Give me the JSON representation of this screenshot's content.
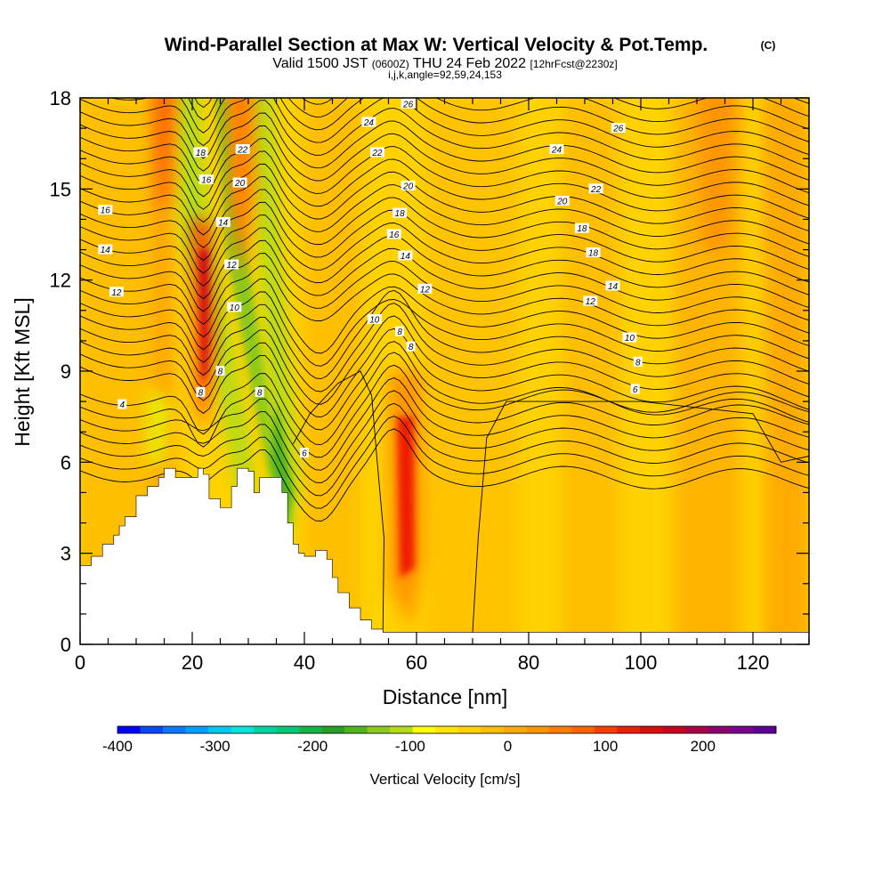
{
  "header": {
    "title": "Wind-Parallel Section at Max W: Vertical Velocity & Pot.Temp.",
    "copyright": "(C)",
    "valid_prefix": "Valid 1500 JST",
    "utc": "(0600Z)",
    "valid_date": "THU 24 Feb 2022",
    "forecast": "[12hrFcst@2230z]",
    "params": "i,j,k,angle=92,59,24,153"
  },
  "chart_data": {
    "type": "heatmap",
    "xlabel": "Distance [nm]",
    "ylabel": "Height [Kft MSL]",
    "xlim": [
      0,
      130
    ],
    "ylim": [
      0,
      18
    ],
    "xticks": [
      0,
      20,
      40,
      60,
      80,
      100,
      120
    ],
    "xtick_labels": [
      "0",
      "20",
      "40",
      "60",
      "80",
      "100",
      "120"
    ],
    "yticks": [
      0,
      3,
      6,
      9,
      12,
      15,
      18
    ],
    "ytick_labels": [
      "0",
      "3",
      "6",
      "9",
      "12",
      "15",
      "18"
    ],
    "colorbar": {
      "label": "Vertical Velocity [cm/s]",
      "min": -400,
      "max": 275,
      "step": 25,
      "ticks": [
        -400,
        -300,
        -200,
        -100,
        0,
        100,
        200
      ],
      "tick_labels": [
        "-400",
        "-300",
        "-200",
        "-100",
        "0",
        "100",
        "200"
      ],
      "colors": [
        "#0000ff",
        "#0a46fa",
        "#0a78fa",
        "#00a0ff",
        "#00c8f0",
        "#00e6dc",
        "#00d2a0",
        "#00c878",
        "#14b446",
        "#28a028",
        "#50b41e",
        "#8cc81e",
        "#b4dc14",
        "#ffff00",
        "#ffe600",
        "#ffd200",
        "#ffbe00",
        "#ffaa00",
        "#ff9600",
        "#ff7d00",
        "#ff6400",
        "#ff3c00",
        "#f01e00",
        "#dc0a0a",
        "#c8001e",
        "#aa0046",
        "#8c006e",
        "#78008c",
        "#5a0096"
      ]
    },
    "terrain_profile": [
      [
        0,
        2.6
      ],
      [
        2,
        2.9
      ],
      [
        4,
        3.3
      ],
      [
        6,
        3.6
      ],
      [
        7,
        3.9
      ],
      [
        8,
        4.2
      ],
      [
        10,
        4.9
      ],
      [
        12,
        5.2
      ],
      [
        14,
        5.5
      ],
      [
        15,
        5.8
      ],
      [
        17,
        5.5
      ],
      [
        19,
        5.5
      ],
      [
        21,
        5.8
      ],
      [
        22,
        5.6
      ],
      [
        23,
        4.8
      ],
      [
        25,
        4.5
      ],
      [
        27,
        5.2
      ],
      [
        28,
        5.8
      ],
      [
        30,
        5.7
      ],
      [
        31,
        5.0
      ],
      [
        32,
        5.5
      ],
      [
        34,
        5.5
      ],
      [
        36,
        5.0
      ],
      [
        37,
        4.0
      ],
      [
        38,
        3.3
      ],
      [
        39,
        3.0
      ],
      [
        40,
        2.9
      ],
      [
        42,
        3.1
      ],
      [
        44,
        2.8
      ],
      [
        45,
        2.2
      ],
      [
        46,
        1.7
      ],
      [
        48,
        1.2
      ],
      [
        50,
        0.8
      ],
      [
        52,
        0.5
      ],
      [
        54,
        0.4
      ],
      [
        130,
        0.4
      ]
    ],
    "updrafts": [
      {
        "x": 58,
        "y": 5,
        "w_cm_s": 150
      },
      {
        "x": 22,
        "y": 11,
        "w_cm_s": 200
      },
      {
        "x": 28,
        "y": 17,
        "w_cm_s": 150
      },
      {
        "x": 15,
        "y": 18,
        "w_cm_s": 150
      },
      {
        "x": 113,
        "y": 16,
        "w_cm_s": 75
      }
    ],
    "downdrafts": [
      {
        "x": 20,
        "y": 13,
        "w_cm_s": -150
      },
      {
        "x": 33,
        "y": 7,
        "w_cm_s": -150
      },
      {
        "x": 36,
        "y": 4,
        "w_cm_s": -175
      },
      {
        "x": 25,
        "y": 16,
        "w_cm_s": -125
      }
    ],
    "theta_contours": {
      "levels_labeled": [
        "4",
        "6",
        "8",
        "10",
        "12",
        "14",
        "16",
        "18",
        "20",
        "22",
        "24",
        "26"
      ],
      "labels": [
        {
          "text": "4",
          "x": 7.5,
          "y": 7.9
        },
        {
          "text": "12",
          "x": 6.5,
          "y": 11.6
        },
        {
          "text": "14",
          "x": 4.5,
          "y": 13.0
        },
        {
          "text": "16",
          "x": 4.5,
          "y": 14.3
        },
        {
          "text": "18",
          "x": 21.5,
          "y": 16.2
        },
        {
          "text": "16",
          "x": 22.5,
          "y": 15.3
        },
        {
          "text": "14",
          "x": 25.5,
          "y": 13.9
        },
        {
          "text": "12",
          "x": 27.0,
          "y": 12.5
        },
        {
          "text": "10",
          "x": 27.5,
          "y": 11.1
        },
        {
          "text": "8",
          "x": 25.0,
          "y": 9.0
        },
        {
          "text": "8",
          "x": 21.5,
          "y": 8.3
        },
        {
          "text": "8",
          "x": 32.0,
          "y": 8.3
        },
        {
          "text": "22",
          "x": 29.0,
          "y": 16.3
        },
        {
          "text": "20",
          "x": 28.5,
          "y": 15.2
        },
        {
          "text": "6",
          "x": 40.0,
          "y": 6.3
        },
        {
          "text": "10",
          "x": 52.5,
          "y": 10.7
        },
        {
          "text": "8",
          "x": 57.0,
          "y": 10.3
        },
        {
          "text": "8",
          "x": 59.0,
          "y": 9.8
        },
        {
          "text": "12",
          "x": 61.5,
          "y": 11.7
        },
        {
          "text": "14",
          "x": 58.0,
          "y": 12.8
        },
        {
          "text": "16",
          "x": 56.0,
          "y": 13.5
        },
        {
          "text": "18",
          "x": 57.0,
          "y": 14.2
        },
        {
          "text": "20",
          "x": 58.5,
          "y": 15.1
        },
        {
          "text": "22",
          "x": 53.0,
          "y": 16.2
        },
        {
          "text": "24",
          "x": 51.5,
          "y": 17.2
        },
        {
          "text": "26",
          "x": 58.5,
          "y": 17.8
        },
        {
          "text": "26",
          "x": 96.0,
          "y": 17.0
        },
        {
          "text": "24",
          "x": 85.0,
          "y": 16.3
        },
        {
          "text": "22",
          "x": 92.0,
          "y": 15.0
        },
        {
          "text": "20",
          "x": 86.0,
          "y": 14.6
        },
        {
          "text": "18",
          "x": 89.5,
          "y": 13.7
        },
        {
          "text": "18",
          "x": 91.5,
          "y": 12.9
        },
        {
          "text": "14",
          "x": 95.0,
          "y": 11.8
        },
        {
          "text": "12",
          "x": 91.0,
          "y": 11.3
        },
        {
          "text": "10",
          "x": 98.0,
          "y": 10.1
        },
        {
          "text": "8",
          "x": 99.5,
          "y": 9.3
        },
        {
          "text": "6",
          "x": 99.0,
          "y": 8.4
        }
      ]
    }
  }
}
